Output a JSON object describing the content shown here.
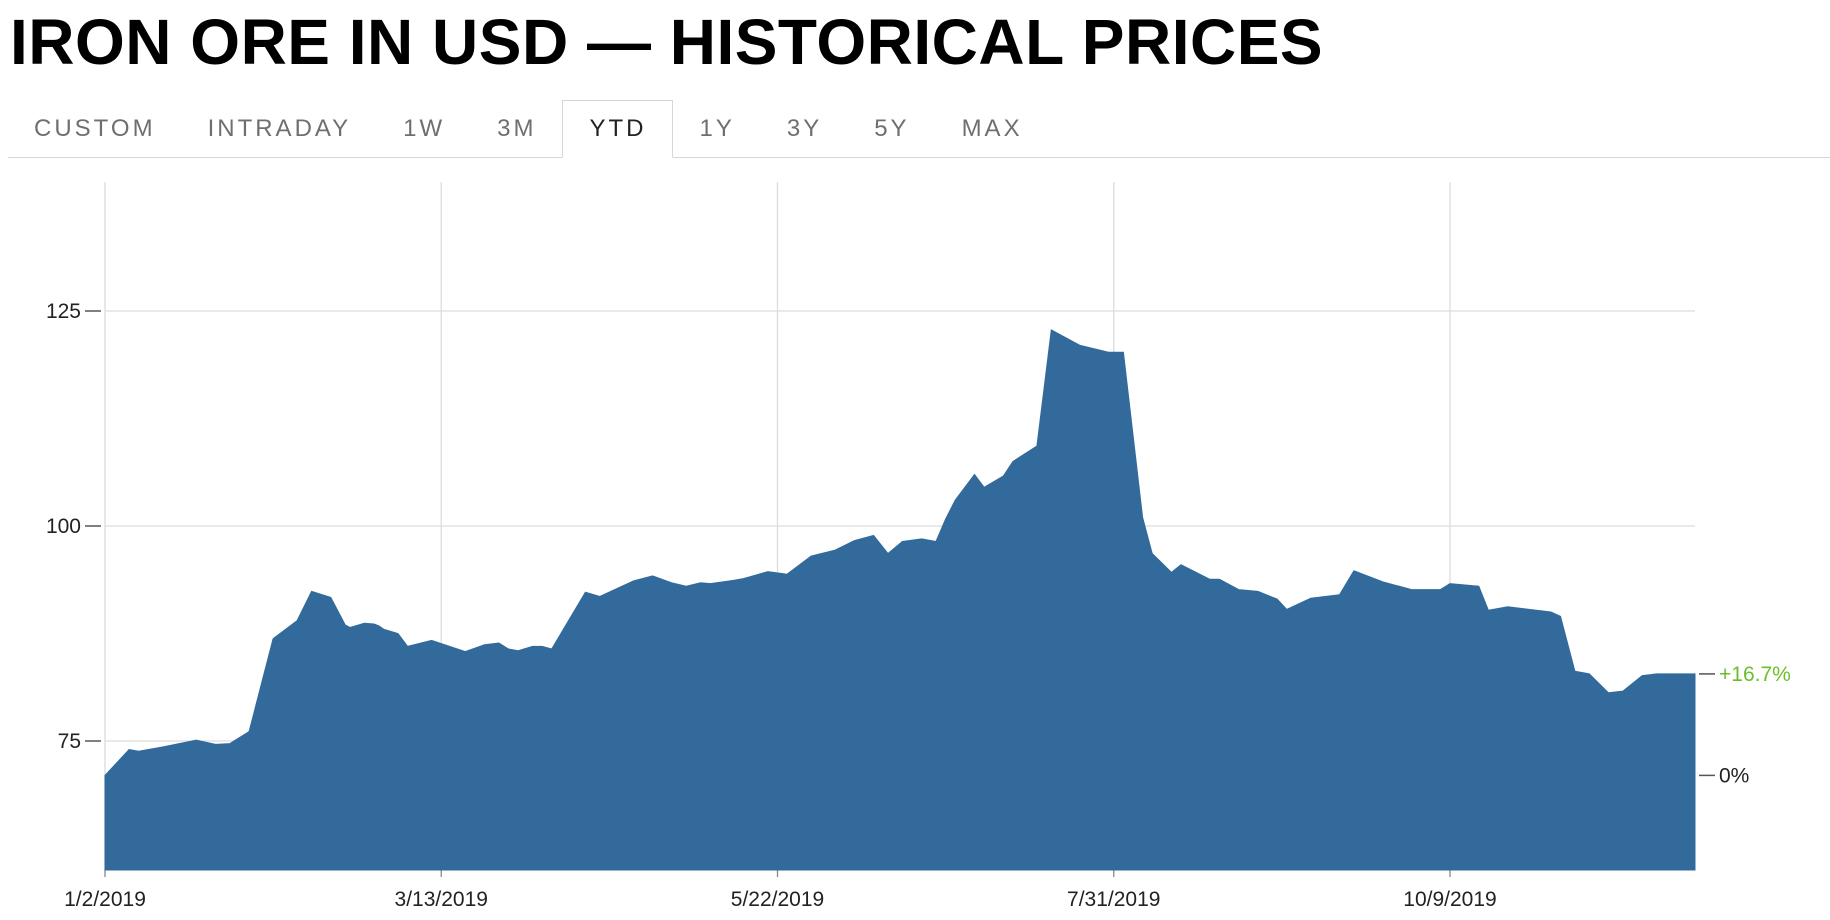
{
  "page": {
    "title": "IRON ORE IN USD — HISTORICAL PRICES"
  },
  "tabs": [
    {
      "label": "CUSTOM",
      "active": false
    },
    {
      "label": "INTRADAY",
      "active": false
    },
    {
      "label": "1W",
      "active": false
    },
    {
      "label": "3M",
      "active": false
    },
    {
      "label": "YTD",
      "active": true
    },
    {
      "label": "1Y",
      "active": false
    },
    {
      "label": "3Y",
      "active": false
    },
    {
      "label": "5Y",
      "active": false
    },
    {
      "label": "MAX",
      "active": false
    }
  ],
  "chart_data": {
    "type": "area",
    "title": "",
    "xlabel": "",
    "ylabel": "",
    "fill_color": "#336a9c",
    "grid_color": "#dcdcdc",
    "x_ticks": [
      "1/2/2019",
      "3/13/2019",
      "5/22/2019",
      "7/31/2019",
      "10/9/2019"
    ],
    "y_ticks": [
      75,
      100,
      125
    ],
    "ylim": [
      60,
      140
    ],
    "x_range": [
      "2019-01-02",
      "2019-11-29"
    ],
    "right_labels": [
      {
        "label": "+16.7%",
        "value": 82.8,
        "color": "#6cbf2a"
      },
      {
        "label": "0%",
        "value": 71.0,
        "color": "#222222"
      }
    ],
    "series": [
      {
        "x": [
          "2019-01-02",
          "2019-01-07",
          "2019-01-09",
          "2019-01-14",
          "2019-01-21",
          "2019-01-25",
          "2019-01-28",
          "2019-02-01",
          "2019-02-06",
          "2019-02-11",
          "2019-02-14",
          "2019-02-18",
          "2019-02-21",
          "2019-02-22",
          "2019-02-25",
          "2019-02-27",
          "2019-02-28",
          "2019-03-01",
          "2019-03-04",
          "2019-03-06",
          "2019-03-11",
          "2019-03-18",
          "2019-03-22",
          "2019-03-25",
          "2019-03-27",
          "2019-03-29",
          "2019-04-01",
          "2019-04-03",
          "2019-04-05",
          "2019-04-12",
          "2019-04-15",
          "2019-04-22",
          "2019-04-26",
          "2019-04-30",
          "2019-05-03",
          "2019-05-06",
          "2019-05-08",
          "2019-05-13",
          "2019-05-15",
          "2019-05-20",
          "2019-05-24",
          "2019-05-29",
          "2019-06-03",
          "2019-06-07",
          "2019-06-11",
          "2019-06-14",
          "2019-06-17",
          "2019-06-21",
          "2019-06-24",
          "2019-06-26",
          "2019-06-28",
          "2019-07-02",
          "2019-07-04",
          "2019-07-08",
          "2019-07-10",
          "2019-07-15",
          "2019-07-18",
          "2019-07-24",
          "2019-07-30",
          "2019-08-02",
          "2019-08-06",
          "2019-08-08",
          "2019-08-12",
          "2019-08-14",
          "2019-08-20",
          "2019-08-22",
          "2019-08-26",
          "2019-08-30",
          "2019-09-03",
          "2019-09-05",
          "2019-09-10",
          "2019-09-16",
          "2019-09-19",
          "2019-09-25",
          "2019-10-01",
          "2019-10-07",
          "2019-10-09",
          "2019-10-15",
          "2019-10-17",
          "2019-10-21",
          "2019-10-30",
          "2019-11-01",
          "2019-11-04",
          "2019-11-07",
          "2019-11-11",
          "2019-11-14",
          "2019-11-18",
          "2019-11-21",
          "2019-11-25",
          "2019-11-29"
        ],
        "y": [
          71.0,
          74.0,
          73.8,
          74.3,
          75.1,
          74.6,
          74.7,
          76.1,
          86.9,
          89.0,
          92.4,
          91.7,
          88.5,
          88.2,
          88.7,
          88.6,
          88.4,
          88.0,
          87.5,
          86.0,
          86.7,
          85.4,
          86.2,
          86.4,
          85.7,
          85.5,
          86.0,
          86.0,
          85.7,
          92.3,
          91.8,
          93.6,
          94.2,
          93.4,
          93.0,
          93.4,
          93.3,
          93.7,
          93.9,
          94.7,
          94.4,
          96.5,
          97.2,
          98.3,
          98.9,
          96.8,
          98.2,
          98.5,
          98.2,
          100.8,
          103.0,
          106.0,
          104.5,
          105.8,
          107.5,
          109.3,
          122.8,
          121.0,
          120.2,
          120.2,
          101.0,
          96.8,
          94.6,
          95.5,
          93.8,
          93.8,
          92.6,
          92.4,
          91.5,
          90.3,
          91.6,
          92.0,
          94.8,
          93.5,
          92.6,
          92.6,
          93.3,
          93.0,
          90.2,
          90.6,
          90.0,
          89.5,
          83.1,
          82.8,
          80.6,
          80.8,
          82.6,
          82.8,
          82.8,
          82.8
        ]
      }
    ]
  }
}
